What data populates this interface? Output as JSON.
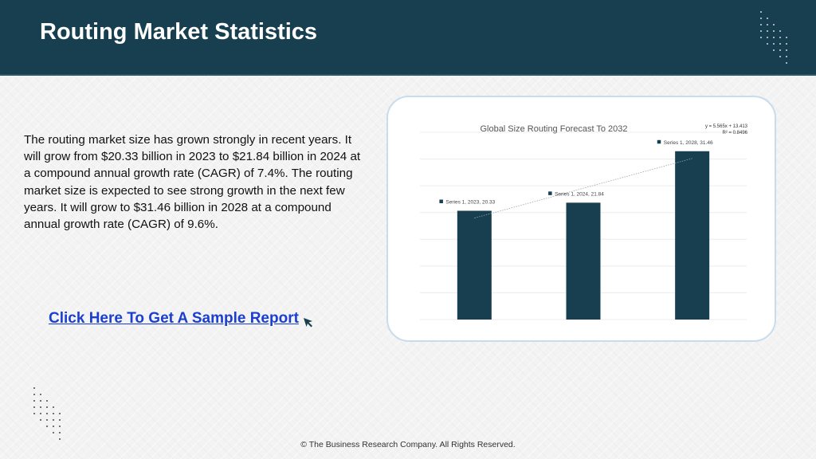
{
  "header": {
    "title": "Routing Market Statistics"
  },
  "description": "The routing market size has grown strongly in recent years. It will grow from $20.33 billion in 2023 to $21.84 billion in 2024 at a compound annual growth rate (CAGR) of 7.4%. The routing market size is expected to see strong growth in the next few years. It will grow to $31.46 billion in 2028 at a compound annual growth rate (CAGR) of 9.6%.",
  "sample_link": {
    "label": "Click Here To Get A Sample Report",
    "icon": "cursor-arrow-icon"
  },
  "footer": {
    "copyright": "© The Business Research Company. All Rights Reserved."
  },
  "colors": {
    "header_bg": "#173f50",
    "bar": "#173f50",
    "link": "#1a3fd0",
    "card_border": "#c7dced"
  },
  "chart_data": {
    "type": "bar",
    "title": "Global Size Routing Forecast To 2032",
    "categories": [
      "2023",
      "2024",
      "2028"
    ],
    "series": [
      {
        "values": [
          20.33,
          21.84,
          31.46
        ],
        "data_labels": [
          "Series 1, 2023, 20.33",
          "Series 1, 2024, 21.84",
          "Series 1, 2028, 31.46"
        ]
      }
    ],
    "trendline": {
      "type": "linear",
      "slope": 5.565,
      "intercept": 13.413,
      "equation": "y = 5.565x + 13.413",
      "r_squared": "R² = 0.8496"
    },
    "ylim": [
      0,
      35
    ],
    "grid": true,
    "legend": "none",
    "xlabel": "",
    "ylabel": ""
  }
}
